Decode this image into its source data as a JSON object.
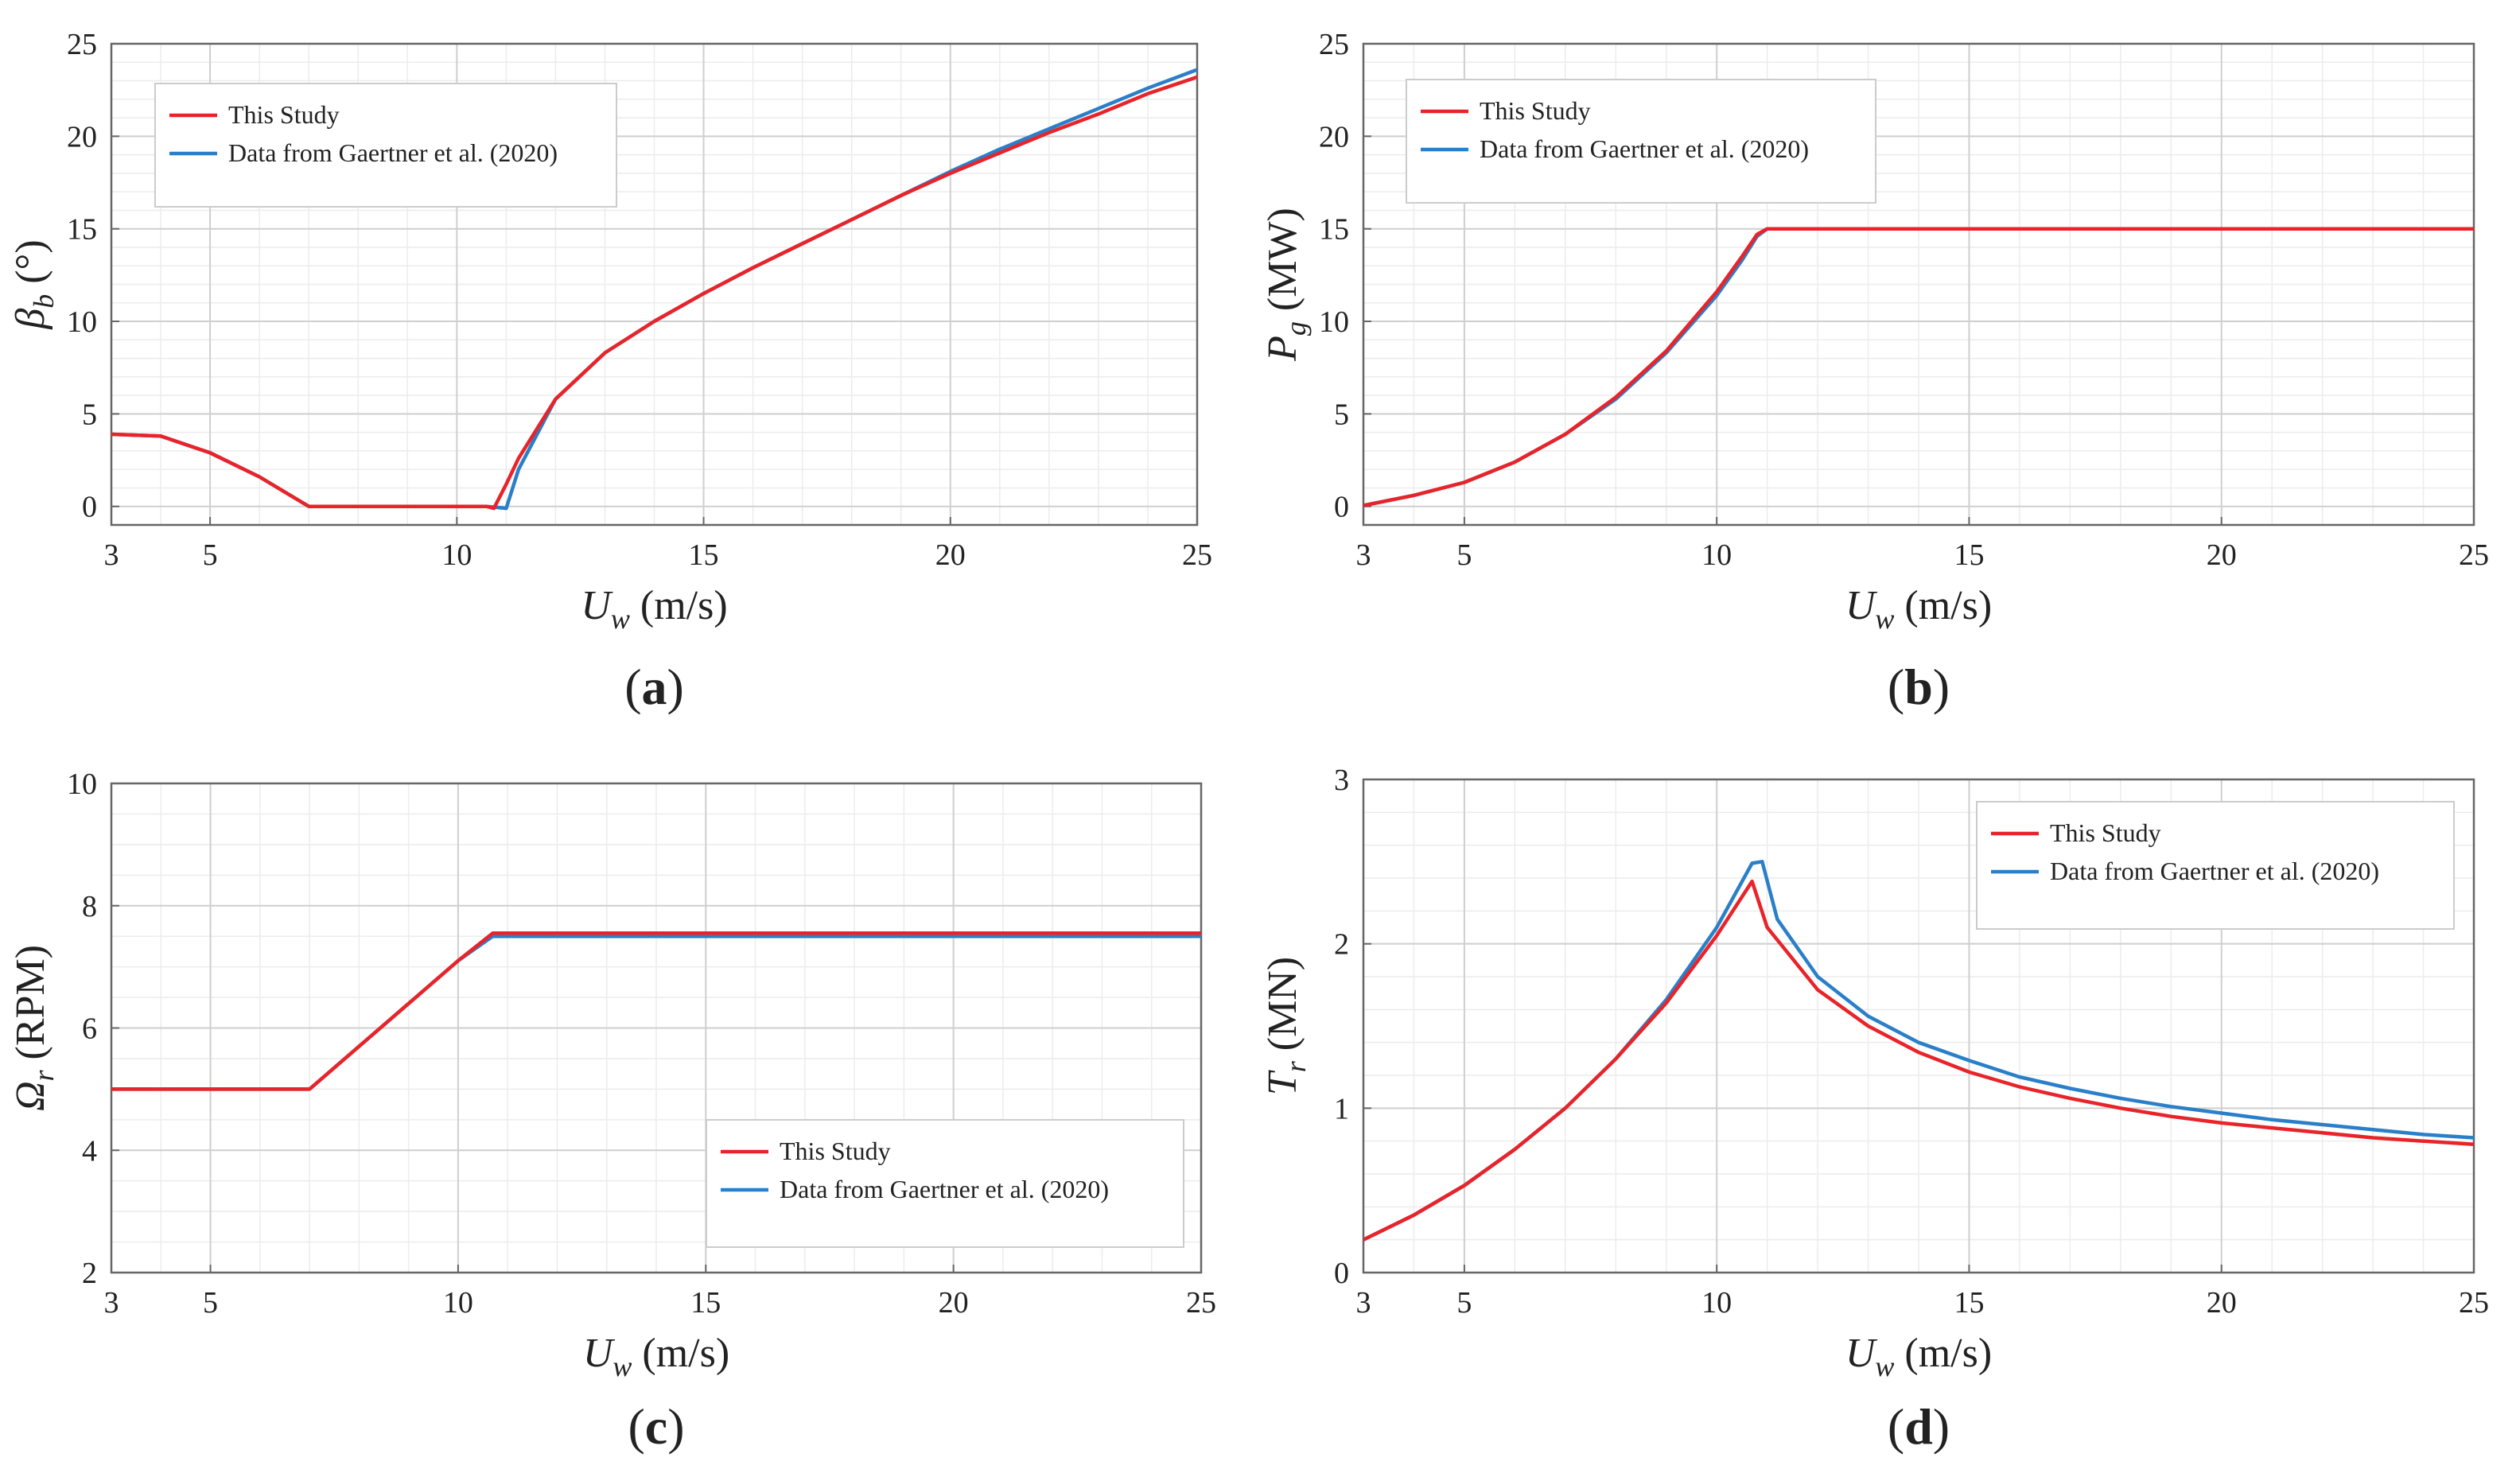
{
  "colors": {
    "this_study": "#e8242a",
    "reference": "#2a7fc9",
    "grid": "#cfcfcf",
    "axis": "#666666"
  },
  "chart_data": [
    {
      "type": "line",
      "panel_label": "(a)",
      "xlabel": {
        "sym": "U",
        "sub": "w",
        "unit": " (m/s)"
      },
      "ylabel": {
        "sym": "β",
        "sub": "b",
        "unit": " (°)"
      },
      "xlim": [
        3,
        25
      ],
      "ylim": [
        -1,
        25
      ],
      "xticks": [
        3,
        5,
        10,
        15,
        20,
        25
      ],
      "yticks": [
        0,
        5,
        10,
        15,
        20,
        25
      ],
      "grid": true,
      "legend_position": "top-left",
      "series": [
        {
          "name": "This Study",
          "color": "#e8242a",
          "x": [
            3,
            4,
            5,
            6,
            7,
            8,
            9,
            10,
            10.6,
            10.75,
            11,
            11.25,
            12,
            13,
            14,
            15,
            16,
            17,
            18,
            19,
            20,
            21,
            22,
            23,
            24,
            25
          ],
          "y": [
            3.9,
            3.8,
            2.9,
            1.6,
            0,
            0,
            0,
            0,
            0,
            -0.1,
            1.2,
            2.6,
            5.8,
            8.3,
            10.0,
            11.5,
            12.9,
            14.2,
            15.5,
            16.8,
            18.0,
            19.1,
            20.2,
            21.2,
            22.3,
            23.2
          ]
        },
        {
          "name": "Data from Gaertner et al. (2020)",
          "color": "#2a7fc9",
          "x": [
            3,
            4,
            5,
            6,
            7,
            8,
            9,
            10,
            10.6,
            10.8,
            11,
            11.25,
            12,
            13,
            14,
            15,
            16,
            17,
            18,
            19,
            20,
            21,
            22,
            23,
            24,
            25
          ],
          "y": [
            3.9,
            3.8,
            2.9,
            1.6,
            0,
            0,
            0,
            0,
            0,
            -0.05,
            -0.1,
            2.0,
            5.8,
            8.3,
            10.0,
            11.5,
            12.9,
            14.2,
            15.5,
            16.8,
            18.1,
            19.3,
            20.4,
            21.5,
            22.6,
            23.6
          ]
        }
      ]
    },
    {
      "type": "line",
      "panel_label": "(b)",
      "xlabel": {
        "sym": "U",
        "sub": "w",
        "unit": " (m/s)"
      },
      "ylabel": {
        "sym": "P",
        "sub": "g",
        "unit": " (MW)"
      },
      "xlim": [
        3,
        25
      ],
      "ylim": [
        -1,
        25
      ],
      "xticks": [
        3,
        5,
        10,
        15,
        20,
        25
      ],
      "yticks": [
        0,
        5,
        10,
        15,
        20,
        25
      ],
      "grid": true,
      "legend_position": "top-left",
      "series": [
        {
          "name": "This Study",
          "color": "#e8242a",
          "x": [
            3,
            4,
            5,
            6,
            7,
            8,
            9,
            10,
            10.5,
            10.8,
            11,
            12,
            15,
            20,
            25
          ],
          "y": [
            0.05,
            0.6,
            1.3,
            2.4,
            3.9,
            5.9,
            8.4,
            11.6,
            13.5,
            14.7,
            15.0,
            15.0,
            15.0,
            15.0,
            15.0
          ]
        },
        {
          "name": "Data from Gaertner et al. (2020)",
          "color": "#2a7fc9",
          "x": [
            3,
            4,
            5,
            6,
            7,
            8,
            9,
            10,
            10.5,
            10.8,
            11,
            12,
            15,
            20,
            25
          ],
          "y": [
            0.05,
            0.6,
            1.3,
            2.4,
            3.9,
            5.8,
            8.3,
            11.4,
            13.3,
            14.6,
            15.0,
            15.0,
            15.0,
            15.0,
            15.0
          ]
        }
      ]
    },
    {
      "type": "line",
      "panel_label": "(c)",
      "xlabel": {
        "sym": "U",
        "sub": "w",
        "unit": " (m/s)"
      },
      "ylabel": {
        "sym": "Ω",
        "sub": "r",
        "unit": " (RPM)"
      },
      "xlim": [
        3,
        25
      ],
      "ylim": [
        2,
        10
      ],
      "xticks": [
        3,
        5,
        10,
        15,
        20,
        25
      ],
      "yticks": [
        2,
        4,
        6,
        8,
        10
      ],
      "grid": true,
      "legend_position": "bottom-right",
      "series": [
        {
          "name": "This Study",
          "color": "#e8242a",
          "x": [
            3,
            5,
            7,
            8,
            9,
            10,
            10.7,
            11,
            15,
            20,
            25
          ],
          "y": [
            5.0,
            5.0,
            5.0,
            5.7,
            6.4,
            7.1,
            7.55,
            7.55,
            7.55,
            7.55,
            7.55
          ]
        },
        {
          "name": "Data from Gaertner et al. (2020)",
          "color": "#2a7fc9",
          "x": [
            3,
            5,
            7,
            8,
            9,
            10,
            10.7,
            11,
            15,
            20,
            25
          ],
          "y": [
            5.0,
            5.0,
            5.0,
            5.7,
            6.4,
            7.1,
            7.5,
            7.5,
            7.5,
            7.5,
            7.5
          ]
        }
      ]
    },
    {
      "type": "line",
      "panel_label": "(d)",
      "xlabel": {
        "sym": "U",
        "sub": "w",
        "unit": " (m/s)"
      },
      "ylabel": {
        "sym": "T",
        "sub": "r",
        "unit": " (MN)"
      },
      "xlim": [
        3,
        25
      ],
      "ylim": [
        0,
        3
      ],
      "xticks": [
        3,
        5,
        10,
        15,
        20,
        25
      ],
      "yticks": [
        0,
        1,
        2,
        3
      ],
      "grid": true,
      "legend_position": "top-right",
      "series": [
        {
          "name": "This Study",
          "color": "#e8242a",
          "x": [
            3,
            4,
            5,
            6,
            7,
            8,
            9,
            10,
            10.7,
            11,
            12,
            13,
            14,
            15,
            16,
            17,
            18,
            19,
            20,
            21,
            22,
            23,
            24,
            25
          ],
          "y": [
            0.2,
            0.35,
            0.53,
            0.75,
            1.0,
            1.3,
            1.64,
            2.05,
            2.38,
            2.1,
            1.72,
            1.5,
            1.34,
            1.22,
            1.13,
            1.06,
            1.0,
            0.95,
            0.91,
            0.88,
            0.85,
            0.82,
            0.8,
            0.78
          ]
        },
        {
          "name": "Data from Gaertner et al. (2020)",
          "color": "#2a7fc9",
          "x": [
            3,
            4,
            5,
            6,
            7,
            8,
            9,
            10,
            10.7,
            10.9,
            11.2,
            12,
            13,
            14,
            15,
            16,
            17,
            18,
            19,
            20,
            21,
            22,
            23,
            24,
            25
          ],
          "y": [
            0.2,
            0.35,
            0.53,
            0.75,
            1.0,
            1.3,
            1.66,
            2.1,
            2.49,
            2.5,
            2.15,
            1.8,
            1.56,
            1.4,
            1.29,
            1.19,
            1.12,
            1.06,
            1.01,
            0.97,
            0.93,
            0.9,
            0.87,
            0.84,
            0.82
          ]
        }
      ]
    }
  ]
}
